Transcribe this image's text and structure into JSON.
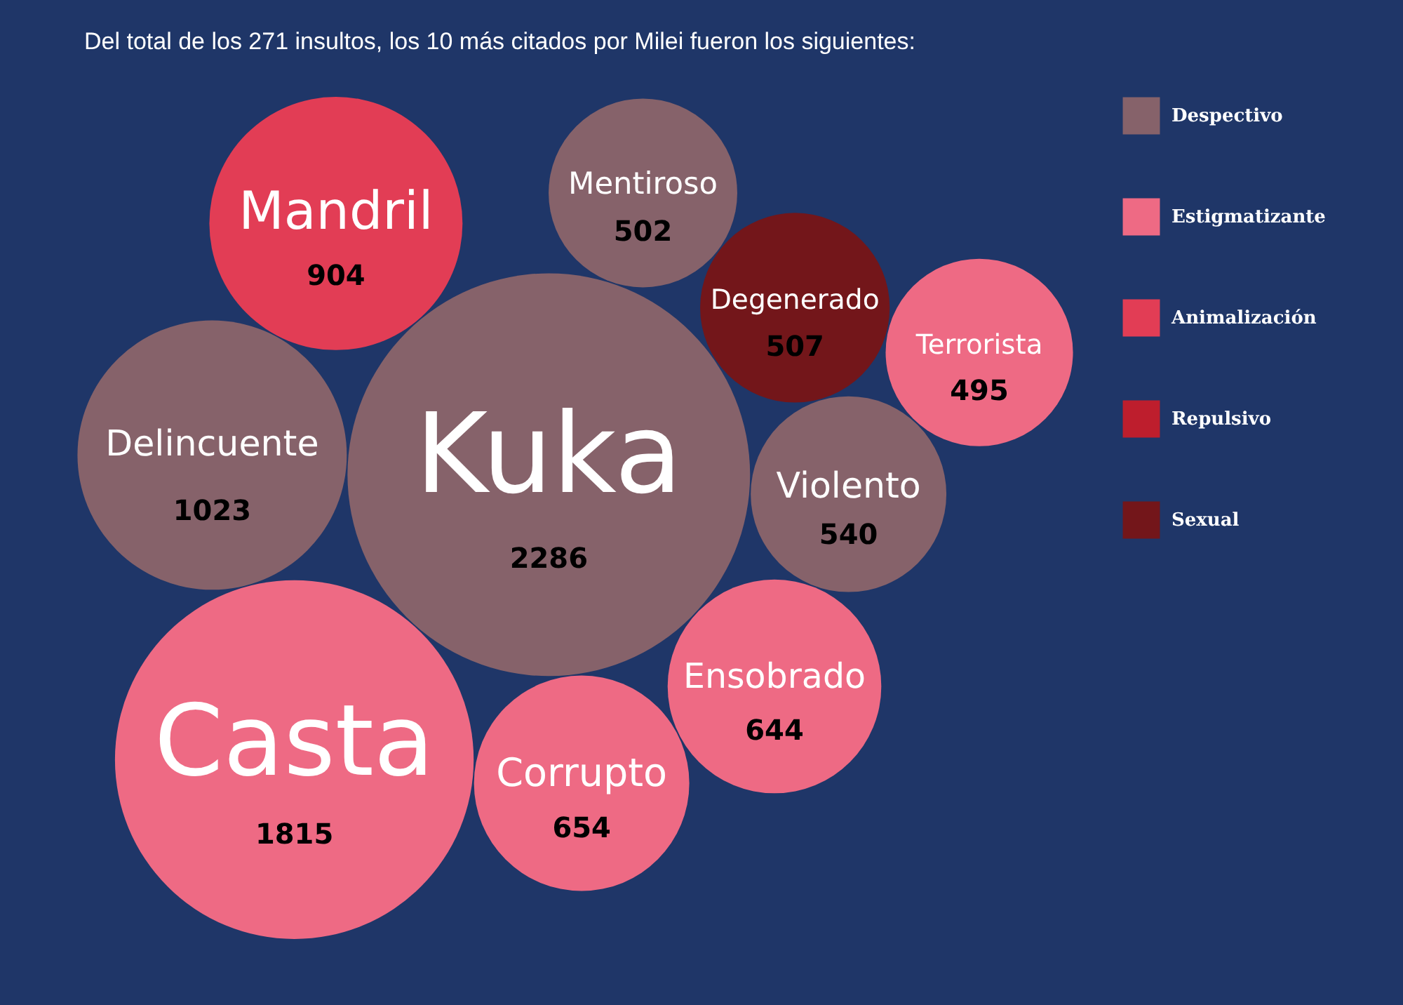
{
  "chart_data": {
    "type": "other",
    "title": "Del total de los 271 insultos, los 10 más citados por Milei fueron los siguientes:",
    "categories": [
      "Kuka",
      "Casta",
      "Delincuente",
      "Mandril",
      "Corrupto",
      "Ensobrado",
      "Violento",
      "Degenerado",
      "Mentiroso",
      "Terrorista"
    ],
    "series": [
      {
        "name": "Despectivo",
        "color": "#86626a",
        "values": [
          2286,
          null,
          1023,
          null,
          null,
          null,
          540,
          null,
          502,
          null
        ]
      },
      {
        "name": "Estigmatizante",
        "color": "#ee6a84",
        "values": [
          null,
          1815,
          null,
          null,
          654,
          644,
          null,
          null,
          null,
          495
        ]
      },
      {
        "name": "Animalización",
        "color": "#e23d55",
        "values": [
          null,
          null,
          null,
          904,
          null,
          null,
          null,
          null,
          null,
          null
        ]
      },
      {
        "name": "Repulsivo",
        "color": "#be1e2d",
        "values": [
          null,
          null,
          null,
          null,
          null,
          null,
          null,
          null,
          null,
          null
        ]
      },
      {
        "name": "Sexual",
        "color": "#73161a",
        "values": [
          null,
          null,
          null,
          null,
          null,
          null,
          null,
          507,
          null,
          null
        ]
      }
    ],
    "data_labels": true,
    "legend": "right"
  }
}
